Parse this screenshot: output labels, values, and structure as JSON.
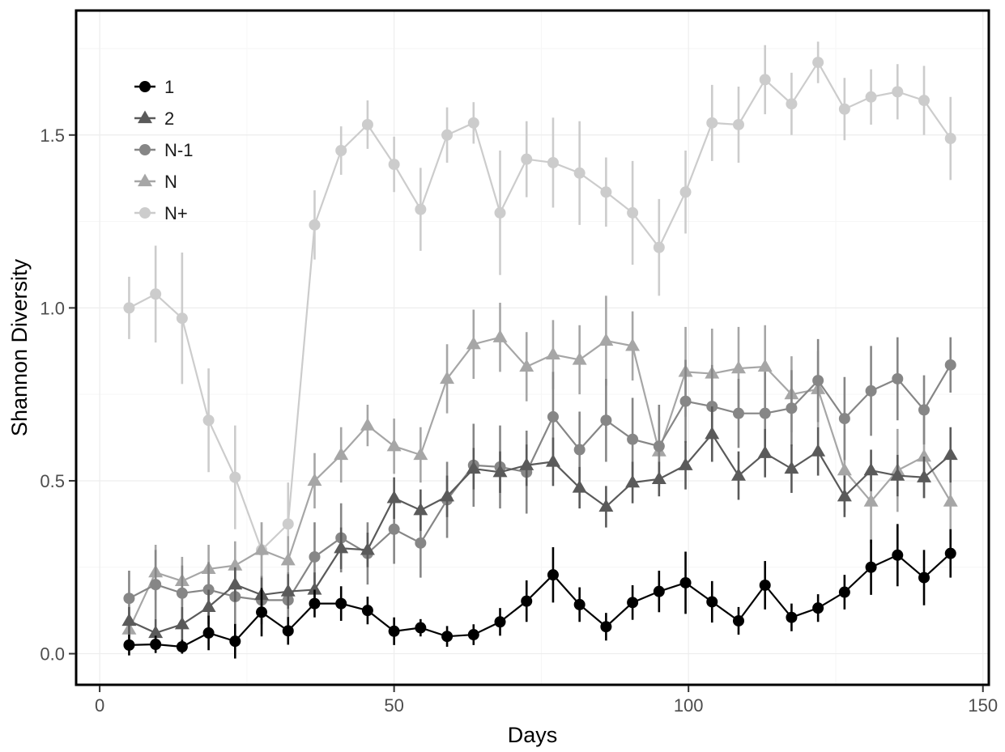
{
  "chart_data": {
    "type": "line",
    "title": "",
    "xlabel": "Days",
    "ylabel": "Shannon Diversity",
    "xlim": [
      -4,
      151
    ],
    "ylim": [
      -0.09,
      1.86
    ],
    "x_ticks": [
      0,
      50,
      100,
      150
    ],
    "y_ticks": [
      0.0,
      0.5,
      1.0,
      1.5
    ],
    "x_tick_labels": [
      "0",
      "50",
      "100",
      "150"
    ],
    "y_tick_labels": [
      "0.0",
      "0.5",
      "1.0",
      "1.5"
    ],
    "grid": true,
    "legend_position": "top-left",
    "error_bars": true,
    "x": [
      5,
      9.5,
      14,
      18.5,
      23,
      27.5,
      32,
      36.5,
      41,
      45.5,
      50,
      54.5,
      59,
      63.5,
      68,
      72.5,
      77,
      81.5,
      86,
      90.5,
      95,
      99.5,
      104,
      108.5,
      113,
      117.5,
      122,
      126.5,
      131,
      135.5,
      140,
      144.5
    ],
    "series": [
      {
        "name": "1",
        "marker": "circle",
        "color": "#000000",
        "values": [
          0.025,
          0.027,
          0.02,
          0.06,
          0.036,
          0.12,
          0.066,
          0.145,
          0.145,
          0.125,
          0.065,
          0.075,
          0.05,
          0.055,
          0.092,
          0.152,
          0.228,
          0.142,
          0.078,
          0.148,
          0.18,
          0.205,
          0.15,
          0.095,
          0.198,
          0.105,
          0.132,
          0.178,
          0.25,
          0.285,
          0.22,
          0.29
        ],
        "errors": [
          0.03,
          0.025,
          0.02,
          0.05,
          0.05,
          0.07,
          0.04,
          0.04,
          0.05,
          0.04,
          0.04,
          0.025,
          0.03,
          0.03,
          0.04,
          0.06,
          0.08,
          0.05,
          0.04,
          0.05,
          0.06,
          0.09,
          0.06,
          0.04,
          0.07,
          0.04,
          0.04,
          0.05,
          0.08,
          0.09,
          0.08,
          0.07
        ]
      },
      {
        "name": "2",
        "marker": "triangle",
        "color": "#5a5a5a",
        "values": [
          0.095,
          0.06,
          0.085,
          0.135,
          0.2,
          0.17,
          0.18,
          0.185,
          0.305,
          0.3,
          0.45,
          0.415,
          0.455,
          0.535,
          0.525,
          0.545,
          0.555,
          0.48,
          0.425,
          0.495,
          0.505,
          0.545,
          0.635,
          0.515,
          0.58,
          0.535,
          0.585,
          0.455,
          0.53,
          0.515,
          0.51,
          0.575
        ],
        "errors": [
          0.04,
          0.04,
          0.05,
          0.05,
          0.05,
          0.05,
          0.05,
          0.05,
          0.06,
          0.05,
          0.06,
          0.06,
          0.06,
          0.06,
          0.06,
          0.06,
          0.07,
          0.06,
          0.06,
          0.06,
          0.05,
          0.07,
          0.08,
          0.07,
          0.07,
          0.07,
          0.07,
          0.06,
          0.06,
          0.06,
          0.06,
          0.08
        ]
      },
      {
        "name": "N-1",
        "marker": "circle",
        "color": "#868686",
        "values": [
          0.16,
          0.2,
          0.175,
          0.185,
          0.165,
          0.155,
          0.155,
          0.28,
          0.335,
          0.29,
          0.36,
          0.32,
          0.445,
          0.545,
          0.54,
          0.525,
          0.685,
          0.59,
          0.675,
          0.62,
          0.6,
          0.73,
          0.715,
          0.695,
          0.695,
          0.71,
          0.79,
          0.68,
          0.76,
          0.795,
          0.705,
          0.835
        ],
        "errors": [
          0.08,
          0.1,
          0.08,
          0.08,
          0.08,
          0.07,
          0.08,
          0.1,
          0.1,
          0.09,
          0.1,
          0.1,
          0.11,
          0.12,
          0.12,
          0.12,
          0.13,
          0.11,
          0.12,
          0.12,
          0.12,
          0.12,
          0.12,
          0.1,
          0.12,
          0.11,
          0.12,
          0.12,
          0.13,
          0.12,
          0.1,
          0.08
        ]
      },
      {
        "name": "N",
        "marker": "triangle",
        "color": "#a6a6a6",
        "values": [
          0.07,
          0.235,
          0.21,
          0.245,
          0.255,
          0.3,
          0.27,
          0.5,
          0.575,
          0.66,
          0.6,
          0.575,
          0.795,
          0.895,
          0.915,
          0.83,
          0.865,
          0.85,
          0.905,
          0.89,
          0.585,
          0.815,
          0.81,
          0.825,
          0.83,
          0.75,
          0.765,
          0.53,
          0.44,
          0.53,
          0.57,
          0.44
        ],
        "errors": [
          0.05,
          0.08,
          0.07,
          0.07,
          0.07,
          0.08,
          0.07,
          0.08,
          0.08,
          0.06,
          0.08,
          0.08,
          0.1,
          0.1,
          0.1,
          0.1,
          0.1,
          0.1,
          0.13,
          0.1,
          0.1,
          0.13,
          0.13,
          0.12,
          0.12,
          0.11,
          0.11,
          0.12,
          0.12,
          0.12,
          0.12,
          0.12
        ]
      },
      {
        "name": "N+",
        "marker": "circle",
        "color": "#cccccc",
        "values": [
          1.0,
          1.04,
          0.97,
          0.675,
          0.51,
          0.3,
          0.375,
          1.24,
          1.455,
          1.53,
          1.415,
          1.285,
          1.5,
          1.535,
          1.275,
          1.43,
          1.42,
          1.39,
          1.335,
          1.275,
          1.175,
          1.335,
          1.535,
          1.53,
          1.66,
          1.59,
          1.71,
          1.575,
          1.61,
          1.625,
          1.6,
          1.49
        ],
        "errors": [
          0.09,
          0.14,
          0.19,
          0.15,
          0.15,
          0.08,
          0.12,
          0.1,
          0.07,
          0.07,
          0.08,
          0.12,
          0.08,
          0.06,
          0.18,
          0.11,
          0.13,
          0.15,
          0.1,
          0.15,
          0.14,
          0.12,
          0.11,
          0.11,
          0.1,
          0.09,
          0.06,
          0.09,
          0.08,
          0.08,
          0.1,
          0.12
        ]
      }
    ]
  }
}
